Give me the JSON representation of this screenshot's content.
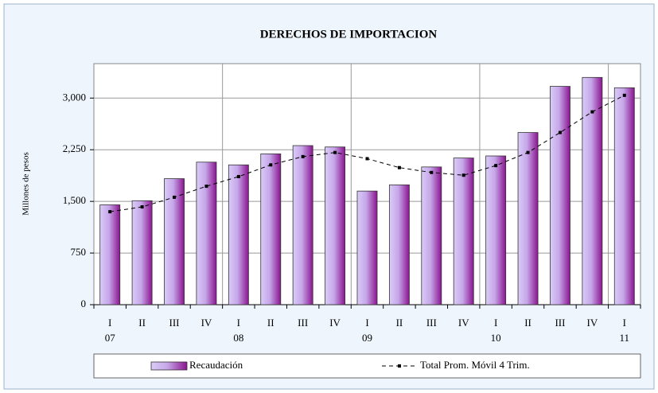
{
  "chart_data": {
    "type": "bar_line",
    "title": "DERECHOS DE IMPORTACION",
    "y_label": "Millones de pesos",
    "categories": [
      "I",
      "II",
      "III",
      "IV",
      "I",
      "II",
      "III",
      "IV",
      "I",
      "II",
      "III",
      "IV",
      "I",
      "II",
      "III",
      "IV",
      "I"
    ],
    "year_labels": [
      "07",
      null,
      null,
      null,
      "08",
      null,
      null,
      null,
      "09",
      null,
      null,
      null,
      "10",
      null,
      null,
      null,
      "11"
    ],
    "series": [
      {
        "name": "Recaudación",
        "type": "bar",
        "color": "#9a2aa8",
        "values": [
          1450,
          1510,
          1830,
          2070,
          2030,
          2190,
          2310,
          2290,
          1650,
          1740,
          2000,
          2130,
          2160,
          2500,
          3170,
          3300,
          3150
        ]
      },
      {
        "name": "Total Prom. Móvil 4 Trim.",
        "type": "line",
        "color": "#000000",
        "values": [
          1350,
          1420,
          1560,
          1720,
          1860,
          2030,
          2150,
          2210,
          2120,
          1990,
          1920,
          1880,
          2020,
          2210,
          2500,
          2800,
          3040
        ]
      }
    ],
    "ylim": [
      0,
      3500
    ],
    "yticks": [
      0,
      750,
      {
        "value": 1500,
        "label": "1,500"
      },
      {
        "value": 2250,
        "label": "2,250"
      },
      {
        "value": 3000,
        "label": "3,000"
      }
    ],
    "grid": true,
    "legend": "bottom"
  }
}
